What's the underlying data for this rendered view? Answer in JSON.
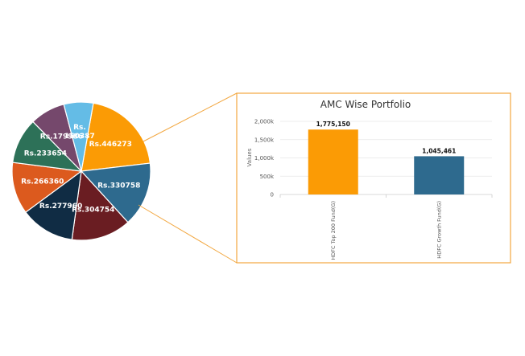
{
  "pie": {
    "slices": [
      {
        "label": "Rs.446273",
        "value": 446273,
        "color": "#fb9b05"
      },
      {
        "label": "Rs.330758",
        "value": 330758,
        "color": "#2e6a8e"
      },
      {
        "label": "Rs.304754",
        "value": 304754,
        "color": "#6a1d22"
      },
      {
        "label": "Rs.277960",
        "value": 277960,
        "color": "#102c44"
      },
      {
        "label": "Rs.266360",
        "value": 266360,
        "color": "#dc5a1e"
      },
      {
        "label": "Rs.233654",
        "value": 233654,
        "color": "#2d7158"
      },
      {
        "label": "Rs.179986",
        "value": 179986,
        "color": "#75486c"
      },
      {
        "label": "Rs. 150387",
        "value": 150387,
        "color": "#64bce6"
      }
    ]
  },
  "chart_data": {
    "type": "bar",
    "title": "AMC Wise Portfolio",
    "ylabel": "Values",
    "xlabel": "",
    "categories": [
      "HDFC Top 200 Fund(G)",
      "HDFC Growth Fund(G)"
    ],
    "values": [
      1775150,
      1045461
    ],
    "value_labels": [
      "1,775,150",
      "1,045,461"
    ],
    "colors": [
      "#fb9b05",
      "#2e6a8e"
    ],
    "ylim": [
      0,
      2000000
    ],
    "yticks": [
      0,
      500000,
      1000000,
      1500000,
      2000000
    ],
    "ytick_labels": [
      "0",
      "500k",
      "1,000k",
      "1,500k",
      "2,000k"
    ],
    "grid": true,
    "border_color": "#f2a740"
  }
}
